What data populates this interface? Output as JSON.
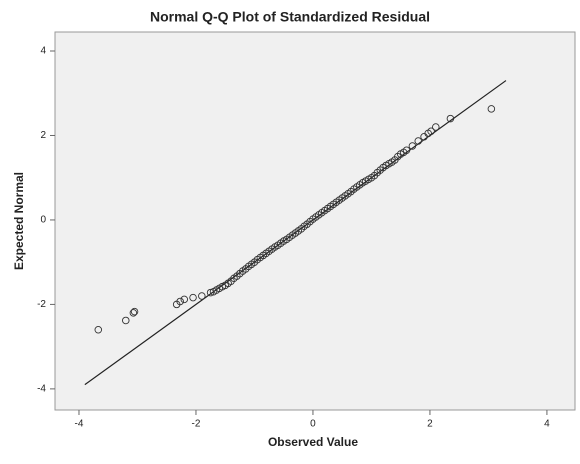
{
  "chart_data": {
    "type": "scatter",
    "title": "Normal Q-Q Plot of Standardized Residual",
    "x_label": "Observed Value",
    "y_label": "Expected Normal",
    "xlim": [
      -4.41,
      4.48
    ],
    "ylim": [
      -4.5,
      4.45
    ],
    "xticks": [
      -4,
      -2,
      0,
      2,
      4
    ],
    "yticks": [
      -4,
      -2,
      0,
      2,
      4
    ],
    "marker_color": "#333333",
    "line_color": "#222222",
    "background": "#f0f0f0",
    "reference_line": {
      "x": [
        -3.9,
        3.3
      ],
      "y": [
        -3.9,
        3.3
      ]
    },
    "x": [
      -3.67,
      -3.2,
      -3.07,
      -3.05,
      -2.33,
      -2.27,
      -2.2,
      -2.05,
      -1.9,
      -1.75,
      -1.7,
      -1.65,
      -1.6,
      -1.55,
      -1.5,
      -1.45,
      -1.4,
      -1.35,
      -1.3,
      -1.25,
      -1.2,
      -1.15,
      -1.1,
      -1.05,
      -1,
      -0.95,
      -0.9,
      -0.85,
      -0.8,
      -0.75,
      -0.7,
      -0.65,
      -0.6,
      -0.55,
      -0.5,
      -0.45,
      -0.4,
      -0.35,
      -0.3,
      -0.25,
      -0.2,
      -0.15,
      -0.1,
      -0.05,
      0,
      0.05,
      0.1,
      0.15,
      0.2,
      0.25,
      0.3,
      0.35,
      0.4,
      0.45,
      0.5,
      0.55,
      0.6,
      0.65,
      0.7,
      0.75,
      0.8,
      0.85,
      0.9,
      0.95,
      1,
      1.05,
      1.1,
      1.15,
      1.2,
      1.25,
      1.3,
      1.35,
      1.4,
      1.45,
      1.5,
      1.55,
      1.6,
      1.7,
      1.8,
      1.9,
      1.97,
      2.02,
      2.1,
      2.35,
      3.05
    ],
    "series": [
      {
        "name": "Observed",
        "values": [
          -2.6,
          -2.38,
          -2.2,
          -2.17,
          -2,
          -1.93,
          -1.88,
          -1.84,
          -1.8,
          -1.72,
          -1.7,
          -1.66,
          -1.62,
          -1.58,
          -1.55,
          -1.5,
          -1.45,
          -1.38,
          -1.33,
          -1.27,
          -1.21,
          -1.16,
          -1.1,
          -1.05,
          -1,
          -0.94,
          -0.89,
          -0.84,
          -0.79,
          -0.74,
          -0.69,
          -0.64,
          -0.6,
          -0.55,
          -0.5,
          -0.46,
          -0.41,
          -0.36,
          -0.31,
          -0.26,
          -0.21,
          -0.15,
          -0.1,
          -0.04,
          0.02,
          0.07,
          0.12,
          0.17,
          0.22,
          0.27,
          0.32,
          0.37,
          0.42,
          0.47,
          0.52,
          0.57,
          0.62,
          0.67,
          0.73,
          0.78,
          0.83,
          0.88,
          0.92,
          0.96,
          1,
          1.05,
          1.12,
          1.18,
          1.24,
          1.29,
          1.33,
          1.37,
          1.42,
          1.5,
          1.56,
          1.6,
          1.65,
          1.75,
          1.87,
          1.97,
          2.05,
          2.1,
          2.2,
          2.4,
          2.63
        ]
      }
    ]
  }
}
